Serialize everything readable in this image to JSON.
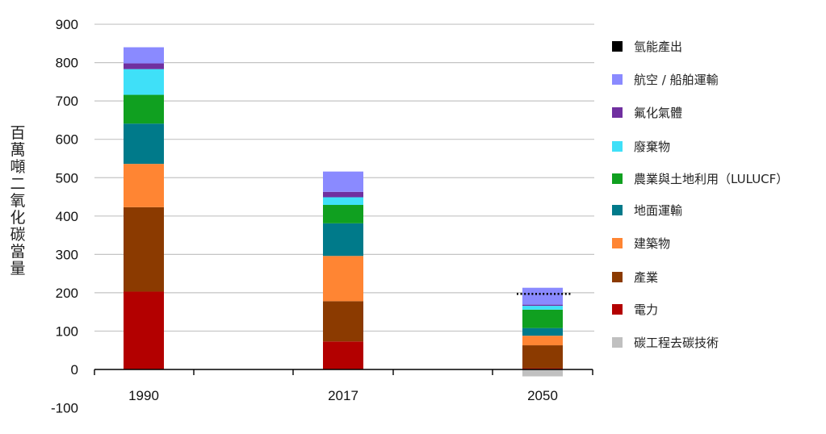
{
  "chart_data": {
    "type": "bar",
    "stacked": true,
    "categories": [
      "1990",
      "2017",
      "2050"
    ],
    "ylabel": "百萬噸二氧化碳當量",
    "ylim": [
      -100,
      900
    ],
    "yticks": [
      900,
      800,
      700,
      600,
      500,
      400,
      300,
      200,
      100,
      0,
      -100
    ],
    "grid": true,
    "legend_position": "right",
    "target_line": {
      "category": "2050",
      "value": 197,
      "style": "dotted"
    },
    "series": [
      {
        "name": "碳工程去碳技術",
        "color": "#c0c0c0",
        "values": [
          0,
          0,
          -18
        ]
      },
      {
        "name": "電力",
        "color": "#b30000",
        "values": [
          203,
          73,
          3
        ]
      },
      {
        "name": "產業",
        "color": "#8b3a00",
        "values": [
          220,
          105,
          60
        ]
      },
      {
        "name": "建築物",
        "color": "#ff8533",
        "values": [
          113,
          118,
          25
        ]
      },
      {
        "name": "地面運輸",
        "color": "#007a8a",
        "values": [
          105,
          85,
          20
        ]
      },
      {
        "name": "農業與土地利用（LULUCF）",
        "color": "#10a020",
        "values": [
          75,
          48,
          48
        ]
      },
      {
        "name": "廢棄物",
        "color": "#3fe0f8",
        "values": [
          67,
          20,
          10
        ]
      },
      {
        "name": "氟化氣體",
        "color": "#7030a0",
        "values": [
          15,
          14,
          3
        ]
      },
      {
        "name": "航空 / 船舶運輸",
        "color": "#8a8aff",
        "values": [
          42,
          53,
          44
        ]
      },
      {
        "name": "氫能產出",
        "color": "#000000",
        "values": [
          0,
          0,
          0
        ]
      }
    ]
  },
  "legend": [
    {
      "label": "氫能產出",
      "color": "#000000"
    },
    {
      "label": "航空 / 船舶運輸",
      "color": "#8a8aff"
    },
    {
      "label": "氟化氣體",
      "color": "#7030a0"
    },
    {
      "label": "廢棄物",
      "color": "#3fe0f8"
    },
    {
      "label": "農業與土地利用（LULUCF）",
      "color": "#10a020"
    },
    {
      "label": "地面運輸",
      "color": "#007a8a"
    },
    {
      "label": "建築物",
      "color": "#ff8533"
    },
    {
      "label": "產業",
      "color": "#8b3a00"
    },
    {
      "label": "電力",
      "color": "#b30000"
    },
    {
      "label": "碳工程去碳技術",
      "color": "#c0c0c0"
    }
  ]
}
